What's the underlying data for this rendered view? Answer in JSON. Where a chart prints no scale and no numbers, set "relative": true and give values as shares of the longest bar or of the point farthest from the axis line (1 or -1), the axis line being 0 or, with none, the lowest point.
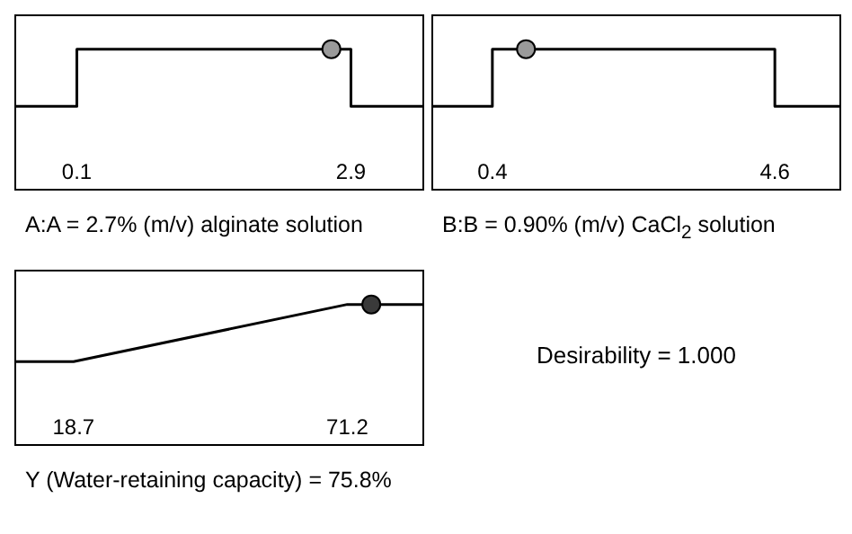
{
  "chart_data": [
    {
      "type": "line",
      "relative": true,
      "xlabel": "A:A = 2.7% (m/v) alginate solution",
      "xlim": [
        -0.52,
        3.63
      ],
      "xticks": [
        0.1,
        2.9
      ],
      "tick_labels": "x",
      "series": [
        {
          "type": "line",
          "color": "#000000",
          "marker": "none",
          "x": [
            -0.52,
            0.1,
            0.1,
            2.9,
            2.9,
            3.63
          ],
          "values": [
            0,
            0,
            1,
            1,
            0,
            0
          ]
        },
        {
          "type": "scatter",
          "color": "#9a9a9a",
          "marker": "circle",
          "x": [
            2.7
          ],
          "values": [
            1
          ]
        }
      ]
    },
    {
      "type": "line",
      "relative": true,
      "xlabel": "B:B = 0.90% (m/v) CaCl$_{2}$ solution",
      "xlim": [
        -0.48,
        5.56
      ],
      "xticks": [
        0.4,
        4.6
      ],
      "tick_labels": "x",
      "series": [
        {
          "type": "line",
          "color": "#000000",
          "marker": "none",
          "x": [
            -0.48,
            0.4,
            0.4,
            4.6,
            4.6,
            5.56
          ],
          "values": [
            0,
            0,
            1,
            1,
            0,
            0
          ]
        },
        {
          "type": "scatter",
          "color": "#9a9a9a",
          "marker": "circle",
          "x": [
            0.9
          ],
          "values": [
            1
          ]
        }
      ]
    },
    {
      "type": "line",
      "relative": true,
      "xlabel": "Y (Water-retaining capacity) = 75.8%",
      "xlim": [
        7.7,
        85.6
      ],
      "xticks": [
        18.7,
        71.2
      ],
      "tick_labels": "x",
      "series": [
        {
          "type": "line",
          "color": "#000000",
          "marker": "none",
          "x": [
            7.7,
            18.7,
            71.2,
            85.6
          ],
          "values": [
            0,
            0,
            1,
            1
          ]
        },
        {
          "type": "scatter",
          "color": "#3a3a3a",
          "marker": "circle",
          "x": [
            75.8
          ],
          "values": [
            1
          ]
        }
      ]
    },
    {
      "type": "other",
      "annotations": [
        "Desirability = 1.000"
      ]
    }
  ]
}
